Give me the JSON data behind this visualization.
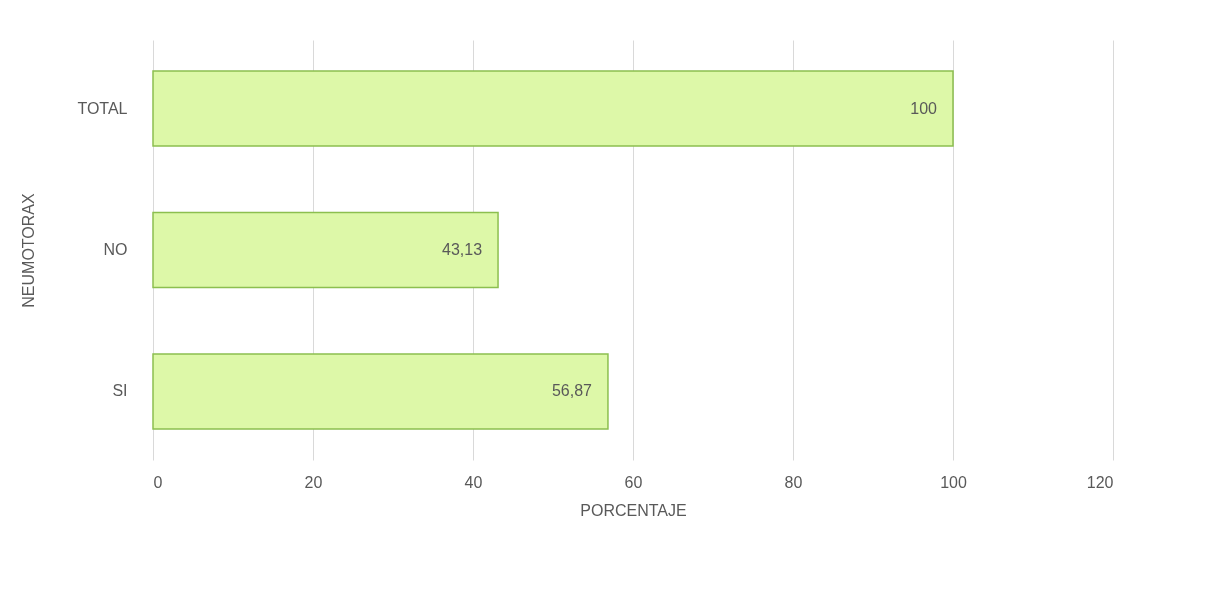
{
  "chart_data": {
    "type": "bar",
    "orientation": "horizontal",
    "xlabel": "PORCENTAJE",
    "ylabel": "NEUMOTORAX",
    "categories": [
      "TOTAL",
      "NO",
      "SI"
    ],
    "values": [
      100,
      43.13,
      56.87
    ],
    "value_labels": [
      "100",
      "43,13",
      "56,87"
    ],
    "color": "#ddf8a8",
    "xlim": [
      0,
      120
    ],
    "xticks": [
      0,
      20,
      40,
      60,
      80,
      100,
      120
    ],
    "grid": "x"
  }
}
